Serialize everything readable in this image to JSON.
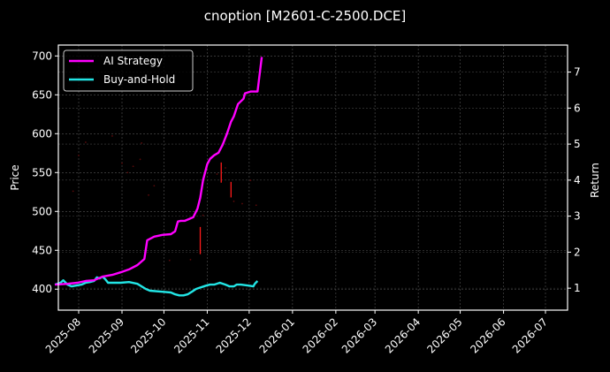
{
  "chart_data": {
    "type": "line",
    "title": "cnoption [M2601-C-2500.DCE]",
    "xlabel": "",
    "ylabel_left": "Price",
    "ylabel_right": "Return",
    "x_ticks": [
      "2025-08",
      "2025-09",
      "2025-10",
      "2025-11",
      "2025-12",
      "2026-01",
      "2026-02",
      "2026-03",
      "2026-04",
      "2026-05",
      "2026-06",
      "2026-07"
    ],
    "y_left_ticks": [
      400,
      450,
      500,
      550,
      600,
      650,
      700
    ],
    "y_left_range": [
      373,
      714
    ],
    "y_right_ticks": [
      1,
      2,
      3,
      4,
      5,
      6,
      7
    ],
    "y_right_range": [
      0.39,
      7.75
    ],
    "grid": true,
    "legend_position": "upper left",
    "legend": [
      {
        "name": "AI Strategy",
        "color": "#ff00ff"
      },
      {
        "name": "Buy-and-Hold",
        "color": "#22e5e5"
      }
    ],
    "series": [
      {
        "name": "AI Strategy",
        "axis": "right",
        "color": "#ff00ff",
        "x": [
          "2025-07-15",
          "2025-07-24",
          "2025-07-31",
          "2025-08-06",
          "2025-08-12",
          "2025-08-18",
          "2025-08-25",
          "2025-08-31",
          "2025-09-06",
          "2025-09-12",
          "2025-09-17",
          "2025-09-19",
          "2025-09-24",
          "2025-09-30",
          "2025-10-06",
          "2025-10-09",
          "2025-10-11",
          "2025-10-13",
          "2025-10-16",
          "2025-10-19",
          "2025-10-22",
          "2025-10-25",
          "2025-10-27",
          "2025-10-29",
          "2025-11-01",
          "2025-11-03",
          "2025-11-06",
          "2025-11-09",
          "2025-11-12",
          "2025-11-15",
          "2025-11-18",
          "2025-11-20",
          "2025-11-23",
          "2025-11-27",
          "2025-11-28",
          "2025-12-02",
          "2025-12-05",
          "2025-12-07",
          "2025-12-10"
        ],
        "values": [
          1.1,
          1.12,
          1.15,
          1.2,
          1.22,
          1.32,
          1.37,
          1.44,
          1.52,
          1.64,
          1.81,
          2.33,
          2.43,
          2.48,
          2.5,
          2.58,
          2.85,
          2.87,
          2.87,
          2.92,
          2.97,
          3.21,
          3.51,
          4.0,
          4.44,
          4.59,
          4.69,
          4.76,
          4.98,
          5.28,
          5.62,
          5.77,
          6.11,
          6.26,
          6.41,
          6.46,
          6.46,
          6.46,
          7.42
        ]
      },
      {
        "name": "Buy-and-Hold",
        "axis": "right",
        "color": "#22e5e5",
        "x": [
          "2025-07-15",
          "2025-07-19",
          "2025-07-21",
          "2025-07-24",
          "2025-07-27",
          "2025-08-03",
          "2025-08-06",
          "2025-08-09",
          "2025-08-12",
          "2025-08-14",
          "2025-08-16",
          "2025-08-18",
          "2025-08-20",
          "2025-08-22",
          "2025-08-25",
          "2025-08-31",
          "2025-09-06",
          "2025-09-12",
          "2025-09-18",
          "2025-09-21",
          "2025-09-30",
          "2025-10-06",
          "2025-10-09",
          "2025-10-12",
          "2025-10-15",
          "2025-10-18",
          "2025-10-21",
          "2025-10-24",
          "2025-10-31",
          "2025-11-03",
          "2025-11-06",
          "2025-11-10",
          "2025-11-14",
          "2025-11-17",
          "2025-11-20",
          "2025-11-22",
          "2025-11-25",
          "2025-12-01",
          "2025-12-04",
          "2025-12-05",
          "2025-12-07"
        ],
        "values": [
          1.1,
          1.15,
          1.22,
          1.1,
          1.05,
          1.1,
          1.15,
          1.17,
          1.2,
          1.3,
          1.27,
          1.32,
          1.25,
          1.15,
          1.15,
          1.15,
          1.17,
          1.12,
          0.98,
          0.93,
          0.9,
          0.88,
          0.83,
          0.8,
          0.8,
          0.83,
          0.9,
          0.98,
          1.07,
          1.1,
          1.1,
          1.15,
          1.1,
          1.05,
          1.05,
          1.1,
          1.1,
          1.07,
          1.05,
          1.12,
          1.2
        ]
      }
    ],
    "price_markers": {
      "axis": "left",
      "color": "#ff1a1a",
      "segments": [
        {
          "x": "2025-10-27",
          "low": 445,
          "high": 480
        },
        {
          "x": "2025-11-11",
          "low": 537,
          "high": 563
        },
        {
          "x": "2025-11-18",
          "low": 518,
          "high": 538
        }
      ],
      "faint_points": [
        {
          "x": "2025-07-28",
          "y": 526
        },
        {
          "x": "2025-08-01",
          "y": 572
        },
        {
          "x": "2025-08-06",
          "y": 589
        },
        {
          "x": "2025-08-25",
          "y": 597
        },
        {
          "x": "2025-09-01",
          "y": 562
        },
        {
          "x": "2025-09-05",
          "y": 550
        },
        {
          "x": "2025-09-09",
          "y": 558
        },
        {
          "x": "2025-09-14",
          "y": 567
        },
        {
          "x": "2025-09-15",
          "y": 588
        },
        {
          "x": "2025-09-20",
          "y": 521
        },
        {
          "x": "2025-09-24",
          "y": 533
        },
        {
          "x": "2025-10-05",
          "y": 437
        },
        {
          "x": "2025-10-20",
          "y": 438
        },
        {
          "x": "2025-10-29",
          "y": 495
        },
        {
          "x": "2025-11-08",
          "y": 548
        },
        {
          "x": "2025-11-14",
          "y": 556
        },
        {
          "x": "2025-11-20",
          "y": 513
        },
        {
          "x": "2025-11-26",
          "y": 510
        },
        {
          "x": "2025-12-06",
          "y": 508
        },
        {
          "x": "2025-12-02",
          "y": 540
        }
      ]
    }
  }
}
